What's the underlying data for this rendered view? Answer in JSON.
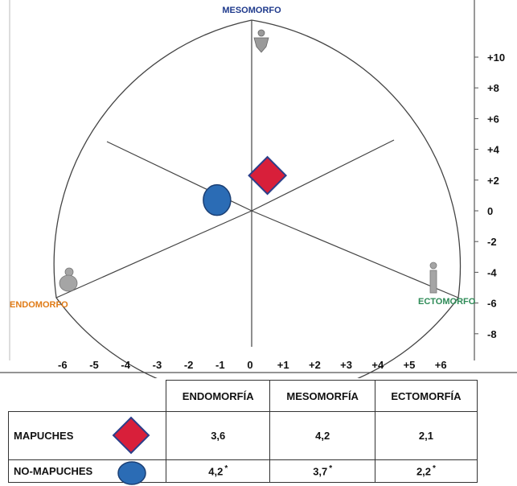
{
  "chart_data": {
    "type": "scatter",
    "vertices": {
      "top": "MESOMORFO",
      "left": "ENDOMORFO",
      "right": "ECTOMORFO"
    },
    "vertex_colors": {
      "top": "#1f3a8c",
      "left": "#e07b16",
      "right": "#2e8b57"
    },
    "x_ticks": [
      "-6",
      "-5",
      "-4",
      "-3",
      "-2",
      "-1",
      "0",
      "+1",
      "+2",
      "+3",
      "+4",
      "+5",
      "+6"
    ],
    "x_tick_values": [
      -6,
      -5,
      -4,
      -3,
      -2,
      -1,
      0,
      1,
      2,
      3,
      4,
      5,
      6
    ],
    "y_ticks": [
      "+10",
      "+8",
      "+6",
      "+4",
      "+2",
      "0",
      "-2",
      "-4",
      "-6",
      "-8"
    ],
    "y_tick_values": [
      10,
      8,
      6,
      4,
      2,
      0,
      -2,
      -4,
      -6,
      -8
    ],
    "xlim": [
      -7,
      7
    ],
    "ylim": [
      -10,
      12
    ],
    "series": [
      {
        "name": "MAPUCHES",
        "marker": "diamond",
        "color": "#d81f3a",
        "x": 0.5,
        "y": 2.3
      },
      {
        "name": "NO-MAPUCHES",
        "marker": "circle",
        "color": "#2b6cb5",
        "x": -1.1,
        "y": 0.7
      }
    ]
  },
  "table": {
    "headers": [
      "ENDOMORFÍA",
      "MESOMORFÍA",
      "ECTOMORFÍA"
    ],
    "rows": [
      {
        "label": "MAPUCHES",
        "values": [
          "3,6",
          "4,2",
          "2,1"
        ],
        "stars": [
          "",
          "",
          ""
        ]
      },
      {
        "label": "NO-MAPUCHES",
        "values": [
          "4,2",
          "3,7",
          "2,2"
        ],
        "stars": [
          "*",
          "*",
          "*"
        ]
      }
    ]
  }
}
